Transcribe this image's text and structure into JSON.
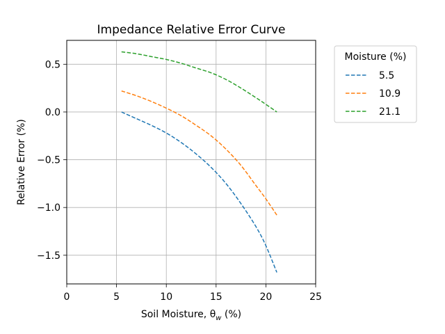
{
  "chart_data": {
    "type": "line",
    "title": "Impedance Relative Error Curve",
    "xlabel": "Soil Moisture, θ",
    "xlabel_subscript": "w",
    "xlabel_suffix": " (%)",
    "ylabel": "Relative Error (%)",
    "xlim": [
      0,
      25
    ],
    "ylim": [
      -1.8,
      0.75
    ],
    "xticks": [
      0,
      5,
      10,
      15,
      20,
      25
    ],
    "xtick_labels": [
      "0",
      "5",
      "10",
      "15",
      "20",
      "25"
    ],
    "yticks": [
      0.5,
      0.0,
      -0.5,
      -1.0,
      -1.5
    ],
    "ytick_labels": [
      "0.5",
      "0.0",
      "−0.5",
      "−1.0",
      "−1.5"
    ],
    "grid": true,
    "legend": {
      "title": "Moisture (%)",
      "placement": "outside upper right"
    },
    "line_style": "dashed",
    "series": [
      {
        "name": "5.5",
        "color": "#1f77b4",
        "x": [
          5.5,
          7.0,
          8.5,
          10.0,
          11.5,
          13.0,
          14.5,
          16.0,
          17.5,
          19.0,
          20.0,
          21.1
        ],
        "y": [
          0.0,
          -0.07,
          -0.14,
          -0.22,
          -0.32,
          -0.44,
          -0.58,
          -0.75,
          -0.96,
          -1.2,
          -1.4,
          -1.68
        ]
      },
      {
        "name": "10.9",
        "color": "#ff7f0e",
        "x": [
          5.5,
          7.0,
          8.5,
          10.0,
          11.5,
          13.0,
          14.5,
          16.0,
          17.5,
          19.0,
          20.0,
          21.1
        ],
        "y": [
          0.22,
          0.17,
          0.11,
          0.04,
          -0.04,
          -0.14,
          -0.25,
          -0.39,
          -0.56,
          -0.77,
          -0.91,
          -1.08
        ]
      },
      {
        "name": "21.1",
        "color": "#2ca02c",
        "x": [
          5.5,
          7.0,
          8.5,
          10.0,
          11.5,
          13.0,
          14.5,
          16.0,
          17.5,
          19.0,
          20.0,
          21.1
        ],
        "y": [
          0.63,
          0.61,
          0.58,
          0.55,
          0.51,
          0.46,
          0.41,
          0.34,
          0.25,
          0.15,
          0.08,
          0.0
        ]
      }
    ]
  }
}
